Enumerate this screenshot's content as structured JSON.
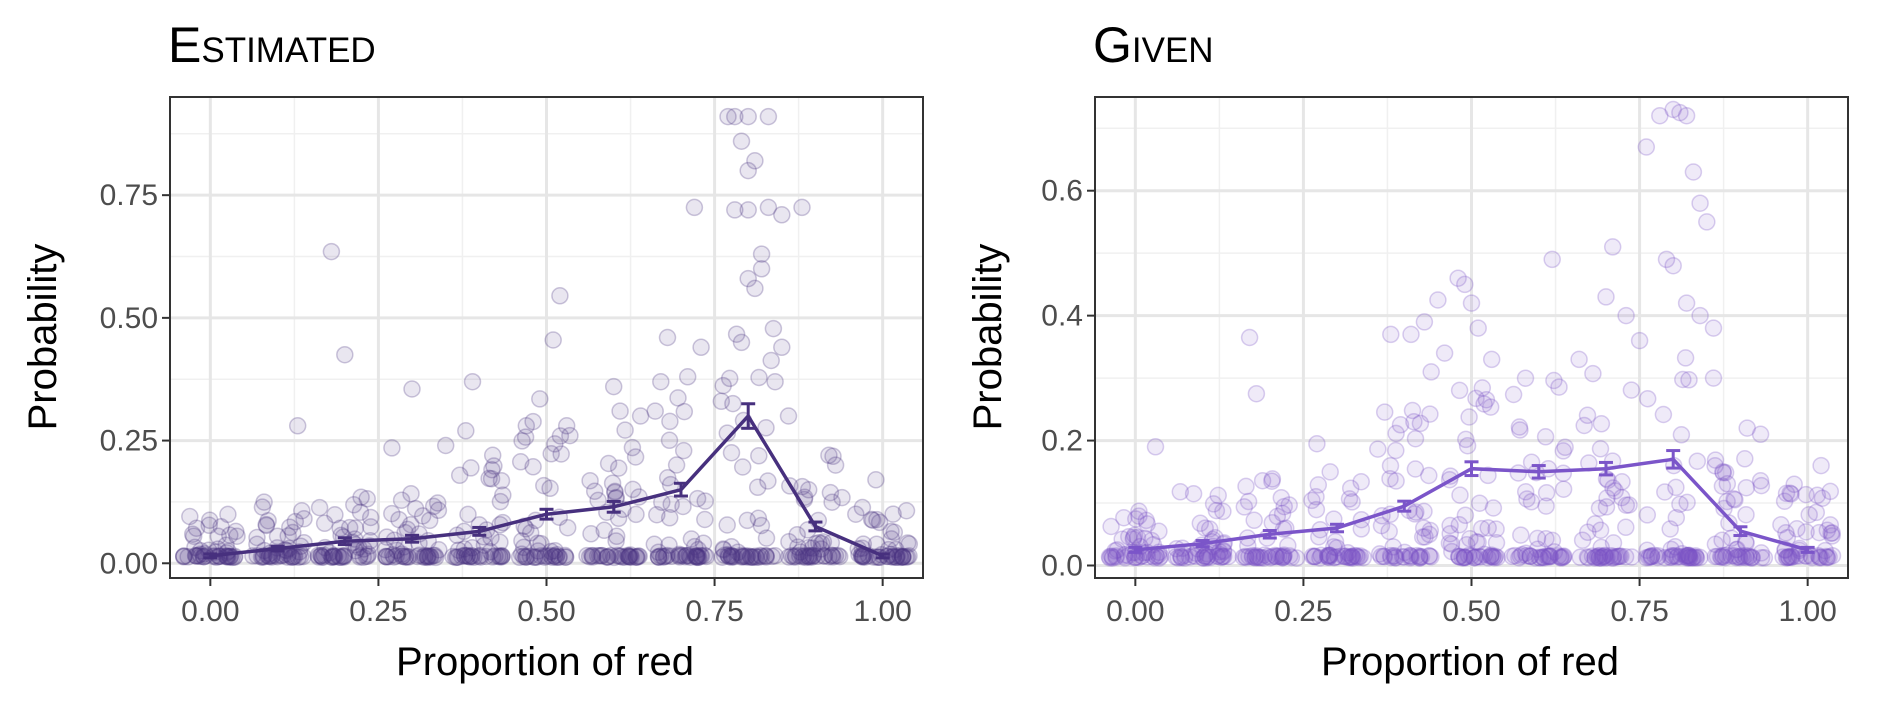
{
  "chart_data": [
    {
      "type": "scatter",
      "title": "Estimated",
      "xlabel": "Proportion of red",
      "ylabel": "Probability",
      "xlim": [
        -0.06,
        1.06
      ],
      "ylim": [
        -0.03,
        0.95
      ],
      "xticks": [
        "0.00",
        "0.25",
        "0.50",
        "0.75",
        "1.00"
      ],
      "xtick_values": [
        0,
        0.25,
        0.5,
        0.75,
        1.0
      ],
      "yticks": [
        "0.00",
        "0.25",
        "0.50",
        "0.75"
      ],
      "ytick_values": [
        0,
        0.25,
        0.5,
        0.75
      ],
      "grid": true,
      "point_color": "#4a3580",
      "line_color": "#47307e",
      "mean_line": {
        "x": [
          0,
          0.1,
          0.2,
          0.3,
          0.4,
          0.5,
          0.6,
          0.7,
          0.8,
          0.9,
          1.0
        ],
        "y": [
          0.015,
          0.03,
          0.045,
          0.05,
          0.065,
          0.1,
          0.115,
          0.15,
          0.3,
          0.075,
          0.015
        ],
        "err": [
          0.004,
          0.005,
          0.007,
          0.007,
          0.008,
          0.01,
          0.011,
          0.013,
          0.025,
          0.009,
          0.004
        ]
      },
      "outliers": [
        [
          0.18,
          0.635
        ],
        [
          0.2,
          0.425
        ],
        [
          0.13,
          0.28
        ],
        [
          0.27,
          0.235
        ],
        [
          0.3,
          0.355
        ],
        [
          0.35,
          0.24
        ],
        [
          0.39,
          0.37
        ],
        [
          0.38,
          0.27
        ],
        [
          0.42,
          0.22
        ],
        [
          0.47,
          0.28
        ],
        [
          0.49,
          0.335
        ],
        [
          0.51,
          0.455
        ],
        [
          0.52,
          0.545
        ],
        [
          0.53,
          0.28
        ],
        [
          0.6,
          0.36
        ],
        [
          0.64,
          0.3
        ],
        [
          0.67,
          0.37
        ],
        [
          0.68,
          0.46
        ],
        [
          0.71,
          0.38
        ],
        [
          0.72,
          0.725
        ],
        [
          0.73,
          0.44
        ],
        [
          0.76,
          0.33
        ],
        [
          0.77,
          0.91
        ],
        [
          0.78,
          0.91
        ],
        [
          0.8,
          0.91
        ],
        [
          0.83,
          0.91
        ],
        [
          0.79,
          0.86
        ],
        [
          0.8,
          0.8
        ],
        [
          0.81,
          0.82
        ],
        [
          0.78,
          0.72
        ],
        [
          0.8,
          0.72
        ],
        [
          0.83,
          0.725
        ],
        [
          0.85,
          0.71
        ],
        [
          0.88,
          0.725
        ],
        [
          0.82,
          0.63
        ],
        [
          0.82,
          0.6
        ],
        [
          0.8,
          0.58
        ],
        [
          0.81,
          0.56
        ],
        [
          0.85,
          0.44
        ],
        [
          0.79,
          0.45
        ],
        [
          0.84,
          0.37
        ],
        [
          0.86,
          0.3
        ],
        [
          0.92,
          0.22
        ],
        [
          0.93,
          0.2
        ],
        [
          0.96,
          0.1
        ],
        [
          0.99,
          0.17
        ]
      ],
      "cloud": [
        {
          "x": 0.0,
          "ymax": 0.1,
          "n": 50
        },
        {
          "x": 0.1,
          "ymax": 0.13,
          "n": 50
        },
        {
          "x": 0.2,
          "ymax": 0.14,
          "n": 50
        },
        {
          "x": 0.3,
          "ymax": 0.15,
          "n": 50
        },
        {
          "x": 0.4,
          "ymax": 0.21,
          "n": 50
        },
        {
          "x": 0.5,
          "ymax": 0.3,
          "n": 50
        },
        {
          "x": 0.6,
          "ymax": 0.33,
          "n": 55
        },
        {
          "x": 0.7,
          "ymax": 0.36,
          "n": 55
        },
        {
          "x": 0.8,
          "ymax": 0.5,
          "n": 55
        },
        {
          "x": 0.9,
          "ymax": 0.22,
          "n": 50
        },
        {
          "x": 1.0,
          "ymax": 0.12,
          "n": 50
        }
      ]
    },
    {
      "type": "scatter",
      "title": "Given",
      "xlabel": "Proportion of red",
      "ylabel": "Probability",
      "xlim": [
        -0.06,
        1.06
      ],
      "ylim": [
        -0.02,
        0.75
      ],
      "xticks": [
        "0.00",
        "0.25",
        "0.50",
        "0.75",
        "1.00"
      ],
      "xtick_values": [
        0,
        0.25,
        0.5,
        0.75,
        1.0
      ],
      "yticks": [
        "0.0",
        "0.2",
        "0.4",
        "0.6"
      ],
      "ytick_values": [
        0,
        0.2,
        0.4,
        0.6
      ],
      "grid": true,
      "point_color": "#7a52c7",
      "line_color": "#7b55c9",
      "mean_line": {
        "x": [
          0,
          0.1,
          0.2,
          0.3,
          0.4,
          0.5,
          0.6,
          0.7,
          0.8,
          0.9,
          1.0
        ],
        "y": [
          0.025,
          0.035,
          0.05,
          0.06,
          0.095,
          0.155,
          0.15,
          0.155,
          0.17,
          0.055,
          0.025
        ],
        "err": [
          0.004,
          0.005,
          0.006,
          0.006,
          0.008,
          0.011,
          0.01,
          0.01,
          0.014,
          0.007,
          0.004
        ]
      },
      "outliers": [
        [
          0.03,
          0.19
        ],
        [
          0.17,
          0.365
        ],
        [
          0.18,
          0.275
        ],
        [
          0.27,
          0.195
        ],
        [
          0.38,
          0.37
        ],
        [
          0.41,
          0.37
        ],
        [
          0.43,
          0.39
        ],
        [
          0.44,
          0.31
        ],
        [
          0.45,
          0.425
        ],
        [
          0.46,
          0.34
        ],
        [
          0.48,
          0.46
        ],
        [
          0.49,
          0.45
        ],
        [
          0.5,
          0.42
        ],
        [
          0.51,
          0.38
        ],
        [
          0.53,
          0.33
        ],
        [
          0.62,
          0.49
        ],
        [
          0.66,
          0.33
        ],
        [
          0.7,
          0.43
        ],
        [
          0.71,
          0.51
        ],
        [
          0.73,
          0.4
        ],
        [
          0.75,
          0.36
        ],
        [
          0.76,
          0.67
        ],
        [
          0.78,
          0.72
        ],
        [
          0.8,
          0.73
        ],
        [
          0.81,
          0.725
        ],
        [
          0.82,
          0.72
        ],
        [
          0.79,
          0.49
        ],
        [
          0.8,
          0.48
        ],
        [
          0.83,
          0.63
        ],
        [
          0.84,
          0.58
        ],
        [
          0.85,
          0.55
        ],
        [
          0.82,
          0.42
        ],
        [
          0.84,
          0.4
        ],
        [
          0.86,
          0.38
        ],
        [
          0.86,
          0.3
        ],
        [
          0.91,
          0.22
        ],
        [
          0.93,
          0.21
        ],
        [
          0.98,
          0.13
        ],
        [
          1.02,
          0.16
        ]
      ],
      "cloud": [
        {
          "x": 0.0,
          "ymax": 0.1,
          "n": 50
        },
        {
          "x": 0.1,
          "ymax": 0.12,
          "n": 50
        },
        {
          "x": 0.2,
          "ymax": 0.14,
          "n": 50
        },
        {
          "x": 0.3,
          "ymax": 0.15,
          "n": 50
        },
        {
          "x": 0.4,
          "ymax": 0.25,
          "n": 55
        },
        {
          "x": 0.5,
          "ymax": 0.3,
          "n": 55
        },
        {
          "x": 0.6,
          "ymax": 0.3,
          "n": 55
        },
        {
          "x": 0.7,
          "ymax": 0.32,
          "n": 55
        },
        {
          "x": 0.8,
          "ymax": 0.35,
          "n": 55
        },
        {
          "x": 0.9,
          "ymax": 0.18,
          "n": 50
        },
        {
          "x": 1.0,
          "ymax": 0.12,
          "n": 50
        }
      ]
    }
  ]
}
